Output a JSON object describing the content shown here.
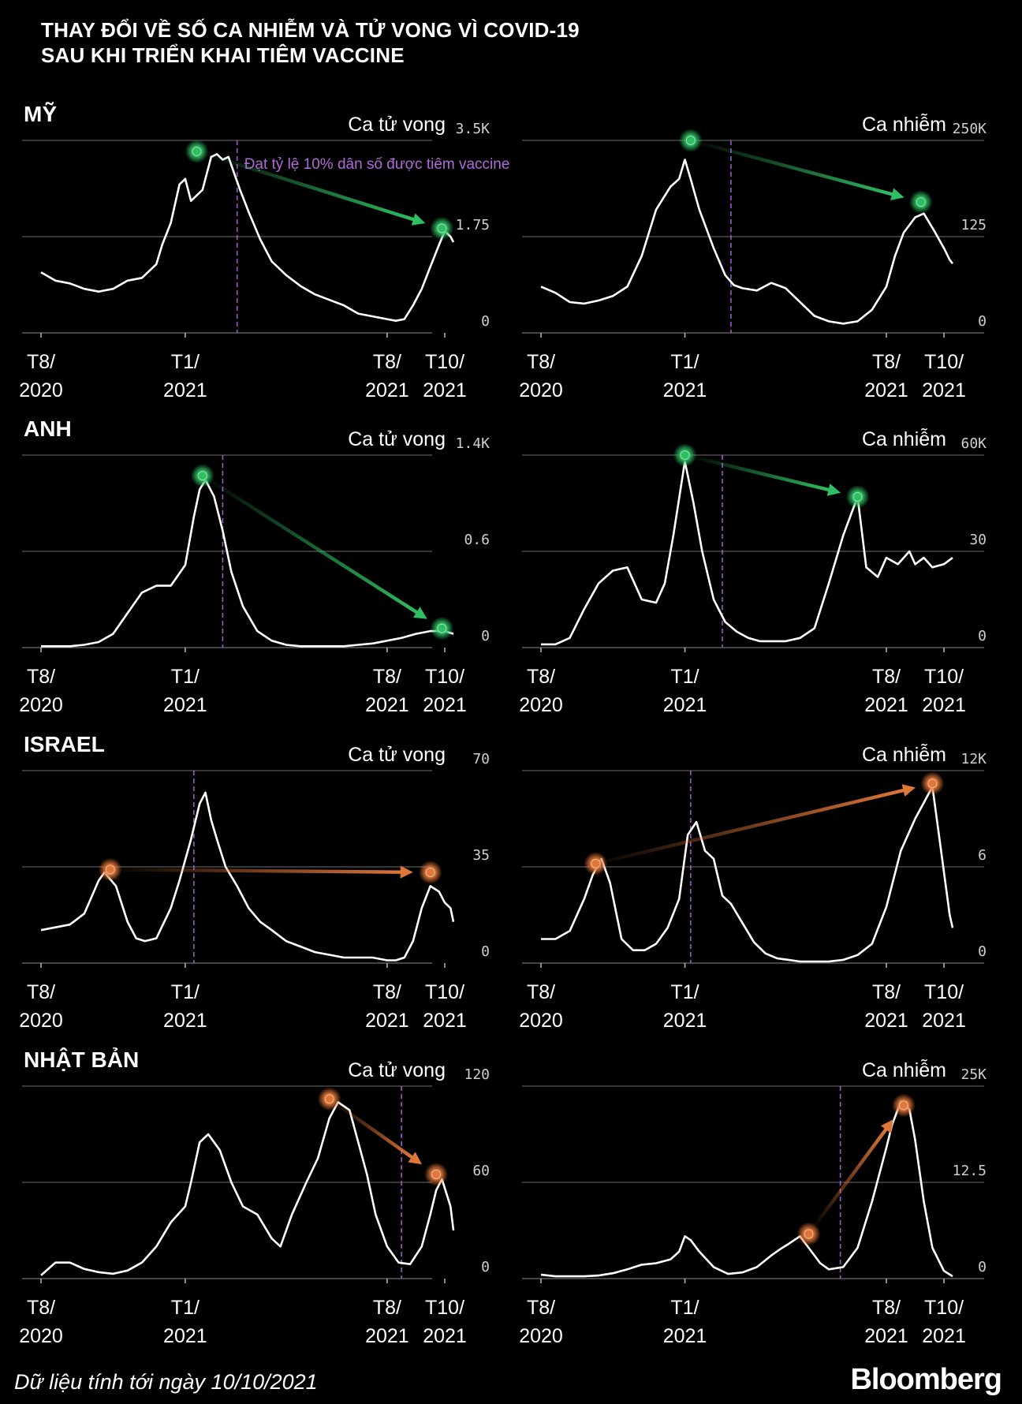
{
  "title": {
    "line1": "THAY ĐỔI VỀ SỐ CA NHIỄM VÀ TỬ VONG VÌ COVID-19",
    "line2": "SAU KHI TRIỂN KHAI TIÊM VACCINE"
  },
  "footnote": "Dữ liệu tính tới ngày 10/10/2021",
  "brand": "Bloomberg",
  "annotation": "Đạt tỷ lệ 10% dân số được tiêm vaccine",
  "colors": {
    "bg": "#000000",
    "line": "#ffffff",
    "grid": "#777777",
    "green": "#2fbf63",
    "orange": "#e07638",
    "vaccine": "#9b59c9"
  },
  "x_axis": {
    "domain": [
      0,
      14.3
    ],
    "ticks": [
      {
        "x": 0,
        "line1": "T8/",
        "line2": "2020"
      },
      {
        "x": 5,
        "line1": "T1/",
        "line2": "2021"
      },
      {
        "x": 12,
        "line1": "T8/",
        "line2": "2021"
      },
      {
        "x": 14,
        "line1": "T10/",
        "line2": "2021"
      }
    ]
  },
  "chart_data": [
    {
      "type": "line",
      "country": "MỸ",
      "metric": "Ca tử vong",
      "color": "green",
      "ylim": [
        0,
        3.5
      ],
      "yticks": [
        "3.5K",
        "1.75",
        "0"
      ],
      "vaccine_x": 6.8,
      "show_annotation": true,
      "x": [
        0,
        0.5,
        1,
        1.5,
        2,
        2.5,
        3,
        3.5,
        4,
        4.2,
        4.5,
        4.8,
        5,
        5.2,
        5.4,
        5.6,
        5.9,
        6.1,
        6.3,
        6.5,
        6.7,
        6.9,
        7.2,
        7.6,
        8,
        8.5,
        9,
        9.5,
        10,
        10.5,
        11,
        11.5,
        12,
        12.3,
        12.6,
        12.9,
        13.2,
        13.5,
        13.8,
        14,
        14.2,
        14.3
      ],
      "values": [
        1.1,
        0.95,
        0.9,
        0.8,
        0.75,
        0.8,
        0.95,
        1.0,
        1.25,
        1.6,
        2.0,
        2.7,
        2.8,
        2.4,
        2.5,
        2.6,
        3.2,
        3.25,
        3.15,
        3.2,
        2.9,
        2.6,
        2.2,
        1.7,
        1.3,
        1.05,
        0.85,
        0.7,
        0.6,
        0.5,
        0.35,
        0.3,
        0.25,
        0.22,
        0.25,
        0.5,
        0.8,
        1.2,
        1.6,
        1.85,
        1.75,
        1.65
      ],
      "markers": [
        {
          "x": 5.4,
          "y": 3.3
        },
        {
          "x": 13.9,
          "y": 1.9
        }
      ]
    },
    {
      "type": "line",
      "country": "",
      "metric": "Ca nhiễm",
      "color": "green",
      "ylim": [
        0,
        250
      ],
      "yticks": [
        "250K",
        "125",
        "0"
      ],
      "vaccine_x": 6.6,
      "show_annotation": false,
      "x": [
        0,
        0.5,
        1,
        1.5,
        2,
        2.5,
        3,
        3.5,
        4,
        4.5,
        4.8,
        5,
        5.2,
        5.5,
        6,
        6.4,
        6.7,
        7,
        7.5,
        8,
        8.5,
        9,
        9.5,
        10,
        10.5,
        11,
        11.5,
        12,
        12.3,
        12.6,
        13,
        13.3,
        13.7,
        14,
        14.2,
        14.3
      ],
      "values": [
        60,
        52,
        40,
        38,
        42,
        48,
        60,
        100,
        160,
        190,
        200,
        225,
        200,
        160,
        110,
        75,
        62,
        58,
        55,
        65,
        58,
        40,
        22,
        15,
        12,
        15,
        30,
        60,
        100,
        130,
        150,
        155,
        130,
        110,
        95,
        90
      ],
      "markers": [
        {
          "x": 5.2,
          "y": 250
        },
        {
          "x": 13.2,
          "y": 170
        }
      ]
    },
    {
      "type": "line",
      "country": "ANH",
      "metric": "Ca tử vong",
      "color": "green",
      "ylim": [
        0,
        1.4
      ],
      "yticks": [
        "1.4K",
        "0.6",
        "0"
      ],
      "vaccine_x": 6.3,
      "show_annotation": false,
      "x": [
        0,
        0.5,
        1,
        1.5,
        2,
        2.5,
        3,
        3.5,
        4,
        4.5,
        5,
        5.3,
        5.5,
        5.7,
        6,
        6.3,
        6.6,
        7,
        7.5,
        8,
        8.5,
        9,
        9.5,
        10,
        10.5,
        11,
        11.5,
        12,
        12.5,
        13,
        13.5,
        14,
        14.3
      ],
      "values": [
        0.01,
        0.01,
        0.01,
        0.02,
        0.04,
        0.1,
        0.25,
        0.4,
        0.45,
        0.45,
        0.6,
        0.95,
        1.15,
        1.22,
        1.1,
        0.85,
        0.55,
        0.3,
        0.12,
        0.05,
        0.02,
        0.01,
        0.01,
        0.01,
        0.01,
        0.02,
        0.03,
        0.05,
        0.07,
        0.1,
        0.12,
        0.12,
        0.1
      ],
      "markers": [
        {
          "x": 5.6,
          "y": 1.25
        },
        {
          "x": 13.9,
          "y": 0.14
        }
      ]
    },
    {
      "type": "line",
      "country": "",
      "metric": "Ca nhiễm",
      "color": "green",
      "ylim": [
        0,
        60
      ],
      "yticks": [
        "60K",
        "30",
        "0"
      ],
      "vaccine_x": 6.3,
      "show_annotation": false,
      "x": [
        0,
        0.5,
        1,
        1.5,
        2,
        2.5,
        3,
        3.5,
        4,
        4.3,
        4.6,
        5,
        5.3,
        5.6,
        6,
        6.4,
        6.8,
        7.2,
        7.6,
        8,
        8.5,
        9,
        9.5,
        10,
        10.5,
        11,
        11.3,
        11.7,
        12,
        12.4,
        12.8,
        13,
        13.3,
        13.6,
        14,
        14.3
      ],
      "values": [
        1,
        1,
        3,
        12,
        20,
        24,
        25,
        15,
        14,
        20,
        35,
        58,
        45,
        30,
        15,
        8,
        5,
        3,
        2,
        2,
        2,
        3,
        6,
        20,
        35,
        47,
        25,
        22,
        28,
        26,
        30,
        26,
        28,
        25,
        26,
        28
      ],
      "markers": [
        {
          "x": 5.0,
          "y": 60
        },
        {
          "x": 11.0,
          "y": 47
        }
      ]
    },
    {
      "type": "line",
      "country": "ISRAEL",
      "metric": "Ca tử vong",
      "color": "orange",
      "ylim": [
        0,
        70
      ],
      "yticks": [
        "70",
        "35",
        "0"
      ],
      "vaccine_x": 5.3,
      "show_annotation": false,
      "x": [
        0,
        0.5,
        1,
        1.5,
        2,
        2.2,
        2.6,
        3,
        3.3,
        3.6,
        4,
        4.5,
        4.8,
        5.2,
        5.5,
        5.7,
        5.9,
        6.1,
        6.4,
        6.8,
        7.2,
        7.6,
        8,
        8.5,
        9,
        9.5,
        10,
        10.5,
        11,
        11.5,
        12,
        12.3,
        12.6,
        12.9,
        13.2,
        13.5,
        13.8,
        14,
        14.2,
        14.3
      ],
      "values": [
        12,
        13,
        14,
        18,
        30,
        33,
        28,
        15,
        9,
        8,
        9,
        20,
        30,
        45,
        58,
        62,
        52,
        45,
        35,
        28,
        20,
        15,
        12,
        8,
        6,
        4,
        3,
        2,
        2,
        2,
        1,
        1,
        2,
        8,
        20,
        28,
        26,
        22,
        20,
        15
      ],
      "markers": [
        {
          "x": 2.4,
          "y": 34
        },
        {
          "x": 13.5,
          "y": 33
        }
      ]
    },
    {
      "type": "line",
      "country": "",
      "metric": "Ca nhiễm",
      "color": "orange",
      "ylim": [
        0,
        12
      ],
      "yticks": [
        "12K",
        "6",
        "0"
      ],
      "vaccine_x": 5.2,
      "show_annotation": false,
      "x": [
        0,
        0.5,
        1,
        1.5,
        1.8,
        2.1,
        2.4,
        2.8,
        3.2,
        3.6,
        4,
        4.4,
        4.8,
        5.1,
        5.4,
        5.7,
        6,
        6.3,
        6.6,
        7,
        7.4,
        7.8,
        8.2,
        8.6,
        9,
        9.5,
        10,
        10.5,
        11,
        11.5,
        12,
        12.5,
        13,
        13.3,
        13.6,
        13.9,
        14.2,
        14.3
      ],
      "values": [
        1.5,
        1.5,
        2,
        4,
        5.5,
        6.5,
        5,
        1.5,
        0.8,
        0.8,
        1.2,
        2.2,
        4,
        8,
        8.8,
        7,
        6.5,
        4.2,
        3.7,
        2.5,
        1.3,
        0.6,
        0.3,
        0.2,
        0.1,
        0.1,
        0.1,
        0.2,
        0.5,
        1.2,
        3.5,
        7,
        9,
        10,
        11,
        7,
        3,
        2.2
      ],
      "markers": [
        {
          "x": 1.9,
          "y": 6.2
        },
        {
          "x": 13.6,
          "y": 11.2
        }
      ]
    },
    {
      "type": "line",
      "country": "NHẬT BẢN",
      "metric": "Ca tử vong",
      "color": "orange",
      "ylim": [
        0,
        120
      ],
      "yticks": [
        "120",
        "60",
        "0"
      ],
      "vaccine_x": 12.5,
      "show_annotation": false,
      "x": [
        0,
        0.5,
        1,
        1.5,
        2,
        2.5,
        3,
        3.5,
        4,
        4.5,
        5,
        5.2,
        5.5,
        5.8,
        6.2,
        6.6,
        7,
        7.5,
        8,
        8.3,
        8.7,
        9.2,
        9.6,
        10,
        10.3,
        10.7,
        11,
        11.3,
        11.6,
        12,
        12.4,
        12.8,
        13.2,
        13.5,
        13.7,
        13.9,
        14.2,
        14.3
      ],
      "values": [
        2,
        10,
        10,
        6,
        4,
        3,
        5,
        10,
        20,
        35,
        45,
        60,
        85,
        90,
        80,
        60,
        45,
        40,
        25,
        20,
        40,
        60,
        75,
        100,
        110,
        105,
        85,
        65,
        40,
        20,
        10,
        9,
        20,
        40,
        55,
        62,
        45,
        30
      ],
      "markers": [
        {
          "x": 10.0,
          "y": 112
        },
        {
          "x": 13.7,
          "y": 65
        }
      ]
    },
    {
      "type": "line",
      "country": "",
      "metric": "Ca nhiễm",
      "color": "orange",
      "ylim": [
        0,
        25
      ],
      "yticks": [
        "25K",
        "12.5",
        "0"
      ],
      "vaccine_x": 10.4,
      "show_annotation": false,
      "x": [
        0,
        0.5,
        1,
        1.5,
        2,
        2.5,
        3,
        3.5,
        4,
        4.5,
        4.8,
        5,
        5.2,
        5.5,
        6,
        6.5,
        7,
        7.5,
        8,
        8.3,
        8.6,
        9,
        9.3,
        9.7,
        10,
        10.5,
        11,
        11.5,
        12,
        12.2,
        12.5,
        12.8,
        13,
        13.3,
        13.6,
        14,
        14.3
      ],
      "values": [
        0.5,
        0.3,
        0.3,
        0.3,
        0.4,
        0.7,
        1.2,
        1.8,
        2,
        2.5,
        3.5,
        5.5,
        5,
        3.5,
        1.5,
        0.6,
        0.8,
        1.5,
        3,
        3.8,
        4.5,
        5.5,
        4,
        2,
        1.2,
        1.5,
        4,
        10,
        17,
        20,
        23,
        22,
        18,
        10,
        4,
        1,
        0.3
      ],
      "markers": [
        {
          "x": 9.3,
          "y": 5.8
        },
        {
          "x": 12.6,
          "y": 22.5
        }
      ]
    }
  ]
}
